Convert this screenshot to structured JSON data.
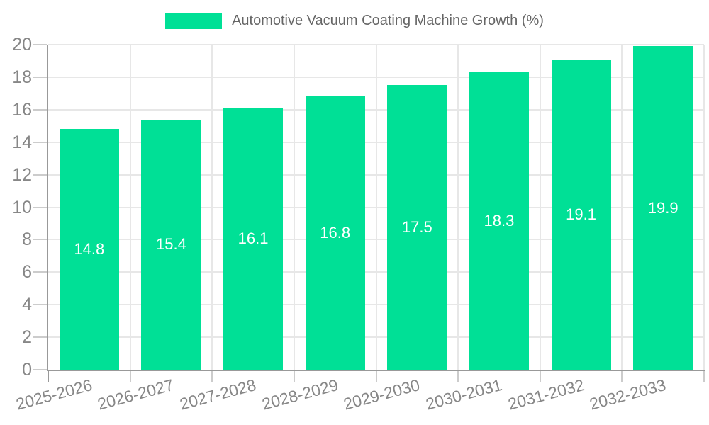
{
  "legend": {
    "label": "Automotive Vacuum Coating Machine Growth (%)"
  },
  "chart_data": {
    "type": "bar",
    "title": "",
    "series_name": "Automotive Vacuum Coating Machine Growth (%)",
    "categories": [
      "2025-2026",
      "2026-2027",
      "2027-2028",
      "2028-2029",
      "2029-2030",
      "2030-2031",
      "2031-2032",
      "2032-2033"
    ],
    "values": [
      14.8,
      15.4,
      16.1,
      16.8,
      17.5,
      18.3,
      19.1,
      19.9
    ],
    "value_labels": [
      "14.8",
      "15.4",
      "16.1",
      "16.8",
      "17.5",
      "18.3",
      "19.1",
      "19.9"
    ],
    "value_labels_position": "inside-center",
    "ylim": [
      0,
      20
    ],
    "ytick_step": 2,
    "yticks": [
      0,
      2,
      4,
      6,
      8,
      10,
      12,
      14,
      16,
      18,
      20
    ],
    "grid": true,
    "legend_position": "top",
    "colors": {
      "bar": "#00E096",
      "grid": "#e7e7e7",
      "tick": "#cccccc",
      "axis": "#999999",
      "tick_label": "#878787",
      "legend_text": "#666666",
      "value_label": "#ffffff",
      "background": "#ffffff"
    }
  }
}
